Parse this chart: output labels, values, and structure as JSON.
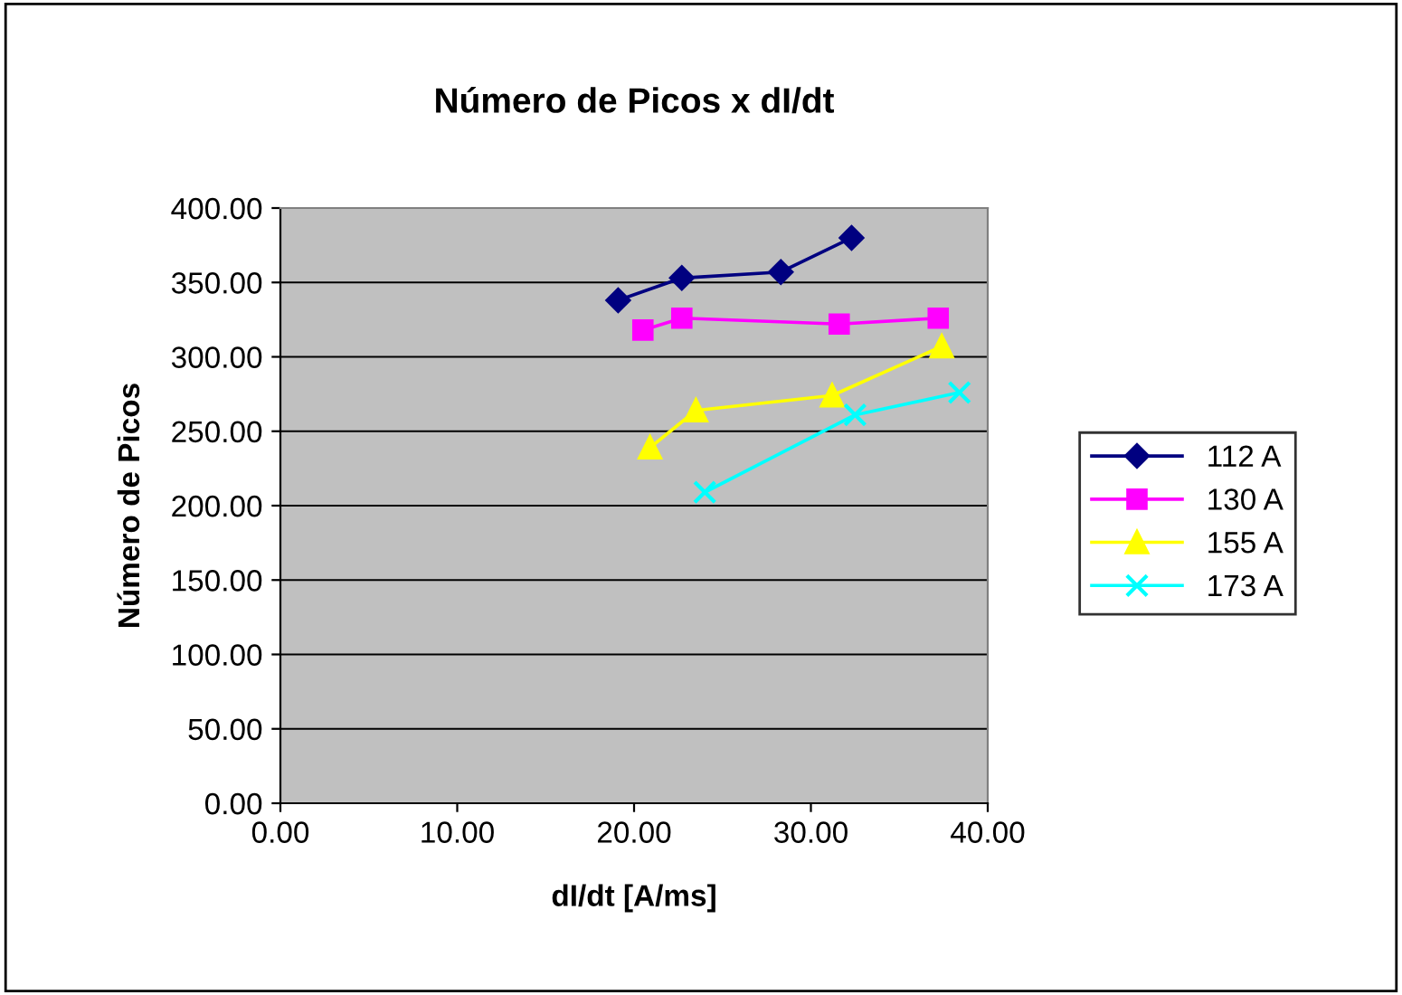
{
  "chart_data": {
    "type": "line",
    "title": "Número de Picos x dI/dt",
    "xlabel": "dI/dt [A/ms]",
    "ylabel": "Número de Picos",
    "xlim": [
      0,
      40
    ],
    "xticks": [
      {
        "value": 0,
        "label": "0.00"
      },
      {
        "value": 10,
        "label": "10.00"
      },
      {
        "value": 20,
        "label": "20.00"
      },
      {
        "value": 30,
        "label": "30.00"
      },
      {
        "value": 40,
        "label": "40.00"
      }
    ],
    "ylim": [
      0,
      400
    ],
    "yticks": [
      {
        "value": 0,
        "label": "0.00"
      },
      {
        "value": 50,
        "label": "50.00"
      },
      {
        "value": 100,
        "label": "100.00"
      },
      {
        "value": 150,
        "label": "150.00"
      },
      {
        "value": 200,
        "label": "200.00"
      },
      {
        "value": 250,
        "label": "250.00"
      },
      {
        "value": 300,
        "label": "300.00"
      },
      {
        "value": 350,
        "label": "350.00"
      },
      {
        "value": 400,
        "label": "400.00"
      }
    ],
    "grid": "y",
    "legend": "right",
    "series": [
      {
        "name": "112 A",
        "color": "#000080",
        "marker": "diamond",
        "x": [
          19.1,
          22.7,
          28.3,
          32.3
        ],
        "values": [
          338,
          353,
          357,
          380
        ]
      },
      {
        "name": "130 A",
        "color": "#ff00ff",
        "marker": "square",
        "x": [
          20.5,
          22.7,
          31.6,
          37.2
        ],
        "values": [
          318,
          326,
          322,
          326
        ]
      },
      {
        "name": "155 A",
        "color": "#ffff00",
        "marker": "triangle",
        "x": [
          20.9,
          23.5,
          31.2,
          37.4
        ],
        "values": [
          239,
          264,
          274,
          307
        ]
      },
      {
        "name": "173 A",
        "color": "#00ffff",
        "marker": "cross",
        "x": [
          24.0,
          32.5,
          38.4
        ],
        "values": [
          209,
          261,
          276
        ]
      }
    ]
  }
}
